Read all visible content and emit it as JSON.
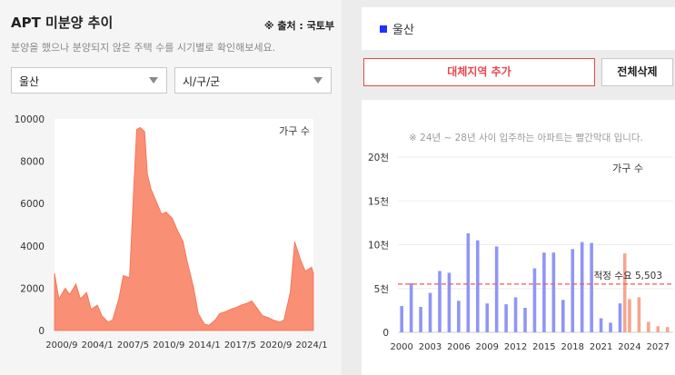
{
  "left_panel": {
    "title": "APT 미분양 추이",
    "source": "※ 출처 : 국토부",
    "subtitle": "분양을 했으나 분양되지 않은 주택 수를 시기별로 확인해보세요.",
    "region_select": {
      "value": "울산"
    },
    "district_select": {
      "value": "시/구/군"
    }
  },
  "right_panel": {
    "legend_label": "울산",
    "add_region_button": "대체지역 추가",
    "delete_all_button": "전체삭제",
    "note": "※ 24년 ~ 28년 사이 입주하는 아파트는 빨간막대 입니다."
  },
  "colors": {
    "area_fill": "#f98f74",
    "area_edge": "#f56f50",
    "bar_past": "#8f96f5",
    "bar_future": "#f7a58f",
    "reference_line": "#f05a5a",
    "legend_square": "#1f32ff",
    "accent_red": "#e8474d"
  },
  "chart_data": [
    {
      "type": "area",
      "ylabel": "가구 수",
      "ylim": [
        0,
        10000
      ],
      "yticks": [
        0,
        2000,
        4000,
        6000,
        8000,
        10000
      ],
      "xtick_labels": [
        "2000/9",
        "2004/1",
        "2007/5",
        "2010/9",
        "2014/1",
        "2017/5",
        "2020/9",
        "2024/1"
      ],
      "grid": false,
      "points": [
        [
          "2000/1",
          2700
        ],
        [
          "2000/6",
          1500
        ],
        [
          "2001/1",
          2000
        ],
        [
          "2001/6",
          1700
        ],
        [
          "2002/1",
          2200
        ],
        [
          "2002/6",
          1500
        ],
        [
          "2003/1",
          1800
        ],
        [
          "2003/6",
          1000
        ],
        [
          "2004/1",
          1200
        ],
        [
          "2004/6",
          700
        ],
        [
          "2005/1",
          400
        ],
        [
          "2005/6",
          500
        ],
        [
          "2006/1",
          1500
        ],
        [
          "2006/6",
          2600
        ],
        [
          "2007/1",
          2500
        ],
        [
          "2007/6",
          7000
        ],
        [
          "2007/9",
          9500
        ],
        [
          "2008/1",
          9600
        ],
        [
          "2008/6",
          9400
        ],
        [
          "2008/9",
          7400
        ],
        [
          "2009/1",
          6700
        ],
        [
          "2009/6",
          6200
        ],
        [
          "2010/1",
          5500
        ],
        [
          "2010/6",
          5600
        ],
        [
          "2011/1",
          5300
        ],
        [
          "2011/6",
          4800
        ],
        [
          "2012/1",
          4200
        ],
        [
          "2012/6",
          3200
        ],
        [
          "2013/1",
          2000
        ],
        [
          "2013/6",
          800
        ],
        [
          "2014/1",
          300
        ],
        [
          "2014/6",
          250
        ],
        [
          "2015/1",
          500
        ],
        [
          "2015/6",
          800
        ],
        [
          "2016/1",
          900
        ],
        [
          "2016/6",
          1000
        ],
        [
          "2017/1",
          1100
        ],
        [
          "2017/6",
          1200
        ],
        [
          "2018/1",
          1300
        ],
        [
          "2018/6",
          1400
        ],
        [
          "2019/1",
          1000
        ],
        [
          "2019/6",
          700
        ],
        [
          "2020/1",
          600
        ],
        [
          "2020/6",
          500
        ],
        [
          "2021/1",
          400
        ],
        [
          "2021/6",
          500
        ],
        [
          "2022/1",
          1800
        ],
        [
          "2022/6",
          4200
        ],
        [
          "2023/1",
          3300
        ],
        [
          "2023/6",
          2800
        ],
        [
          "2024/1",
          3000
        ],
        [
          "2024/3",
          2700
        ]
      ]
    },
    {
      "type": "bar",
      "ylabel": "가구 수",
      "ylim": [
        0,
        20000
      ],
      "ytick_labels": [
        "0",
        "5천",
        "10천",
        "15천",
        "20천"
      ],
      "xtick_labels": [
        "2000",
        "2003",
        "2006",
        "2009",
        "2012",
        "2015",
        "2018",
        "2021",
        "2024",
        "2027"
      ],
      "reference_line": {
        "label": "적정 수요 5,503",
        "value": 5503
      },
      "series": [
        {
          "x": [
            2000,
            2001,
            2002,
            2003,
            2004,
            2005,
            2006,
            2007,
            2008,
            2009,
            2010,
            2011,
            2012,
            2013,
            2014,
            2015,
            2016,
            2017,
            2018,
            2019,
            2020,
            2021,
            2022,
            2023
          ],
          "values": [
            3000,
            5600,
            2900,
            4500,
            7000,
            6800,
            3600,
            11300,
            10500,
            3300,
            9800,
            3200,
            4000,
            2800,
            7300,
            9100,
            9100,
            3700,
            9500,
            10300,
            10200,
            1600,
            1100,
            3300
          ]
        },
        {
          "x": [
            2023.5,
            2024,
            2025,
            2026,
            2027,
            2028
          ],
          "values": [
            9000,
            3800,
            4000,
            1200,
            700,
            600
          ]
        }
      ]
    }
  ]
}
